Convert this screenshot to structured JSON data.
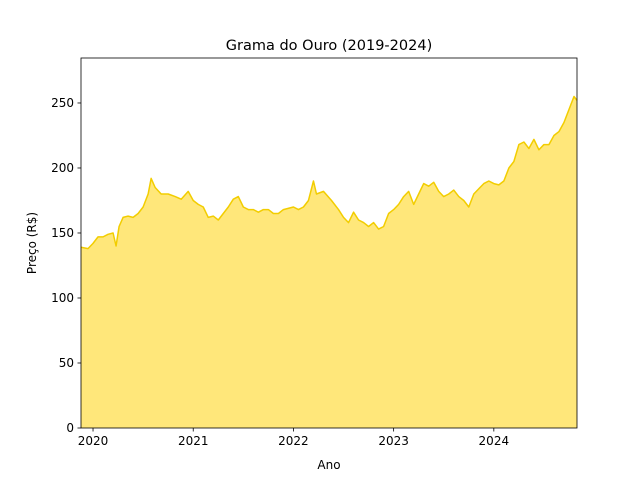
{
  "chart_data": {
    "type": "area",
    "title": "Grama do Ouro (2019-2024)",
    "xlabel": "Ano",
    "ylabel": "Preço (R$)",
    "x": [
      2019.88,
      2019.95,
      2020.0,
      2020.05,
      2020.1,
      2020.15,
      2020.2,
      2020.23,
      2020.26,
      2020.3,
      2020.35,
      2020.4,
      2020.45,
      2020.5,
      2020.55,
      2020.58,
      2020.62,
      2020.68,
      2020.75,
      2020.82,
      2020.88,
      2020.95,
      2021.0,
      2021.05,
      2021.1,
      2021.15,
      2021.2,
      2021.25,
      2021.3,
      2021.35,
      2021.4,
      2021.45,
      2021.5,
      2021.55,
      2021.6,
      2021.65,
      2021.7,
      2021.75,
      2021.8,
      2021.85,
      2021.9,
      2022.0,
      2022.05,
      2022.1,
      2022.15,
      2022.2,
      2022.23,
      2022.3,
      2022.38,
      2022.45,
      2022.5,
      2022.55,
      2022.6,
      2022.65,
      2022.7,
      2022.75,
      2022.8,
      2022.85,
      2022.9,
      2022.95,
      2023.0,
      2023.05,
      2023.1,
      2023.15,
      2023.2,
      2023.25,
      2023.3,
      2023.35,
      2023.4,
      2023.45,
      2023.5,
      2023.55,
      2023.6,
      2023.65,
      2023.7,
      2023.75,
      2023.8,
      2023.85,
      2023.9,
      2023.95,
      2024.0,
      2024.05,
      2024.1,
      2024.15,
      2024.2,
      2024.25,
      2024.3,
      2024.35,
      2024.4,
      2024.45,
      2024.5,
      2024.55,
      2024.6,
      2024.65,
      2024.7,
      2024.75,
      2024.8,
      2024.83
    ],
    "values": [
      139,
      138,
      142,
      147,
      147,
      149,
      150,
      140,
      155,
      162,
      163,
      162,
      165,
      170,
      180,
      192,
      185,
      180,
      180,
      178,
      176,
      182,
      175,
      172,
      170,
      162,
      163,
      160,
      165,
      170,
      176,
      178,
      170,
      168,
      168,
      166,
      168,
      168,
      165,
      165,
      168,
      170,
      168,
      170,
      175,
      190,
      180,
      182,
      175,
      168,
      162,
      158,
      166,
      160,
      158,
      155,
      158,
      153,
      155,
      165,
      168,
      172,
      178,
      182,
      172,
      180,
      188,
      186,
      189,
      182,
      178,
      180,
      183,
      178,
      175,
      170,
      180,
      184,
      188,
      190,
      188,
      187,
      190,
      200,
      205,
      218,
      220,
      215,
      222,
      214,
      218,
      218,
      225,
      228,
      235,
      245,
      255,
      252
    ],
    "line_color": "#f2cd00",
    "fill_color": "#ffe77a",
    "xlim": [
      2019.88,
      2024.83
    ],
    "xticks": [
      2020,
      2021,
      2022,
      2023,
      2024
    ],
    "ylim": [
      0,
      284.6
    ],
    "yticks": [
      0,
      50,
      100,
      150,
      200,
      250
    ]
  }
}
